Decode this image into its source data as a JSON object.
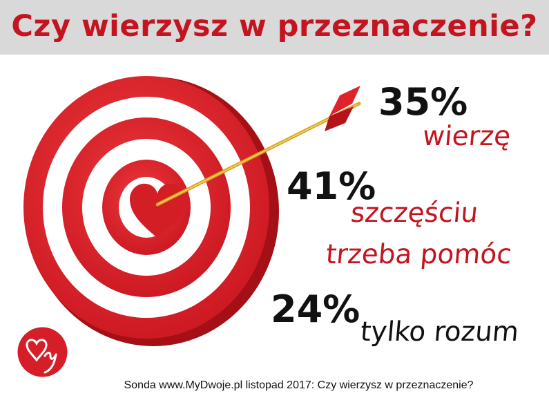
{
  "title": "Czy wierzysz w przeznaczenie?",
  "footer": "Sonda www.MyDwoje.pl listopad 2017: Czy wierzysz w przeznaczenie?",
  "logo_text": "My",
  "colors": {
    "accent": "#c3141f",
    "title_bar": "#d9d9d9",
    "text": "#111111"
  },
  "chart_data": {
    "type": "pie",
    "title": "Czy wierzysz w przeznaczenie?",
    "categories": [
      "wierzę",
      "szczęściu trzeba pomóc",
      "tylko rozum"
    ],
    "values": [
      35,
      41,
      24
    ],
    "unit": "%",
    "labels": [
      {
        "pct": "35%",
        "lines": [
          "wierzę"
        ],
        "color": "#c3141f"
      },
      {
        "pct": "41%",
        "lines": [
          "szczęściu",
          "trzeba pomóc"
        ],
        "color": "#c3141f"
      },
      {
        "pct": "24%",
        "lines": [
          "tylko rozum"
        ],
        "color": "#111111"
      }
    ]
  }
}
